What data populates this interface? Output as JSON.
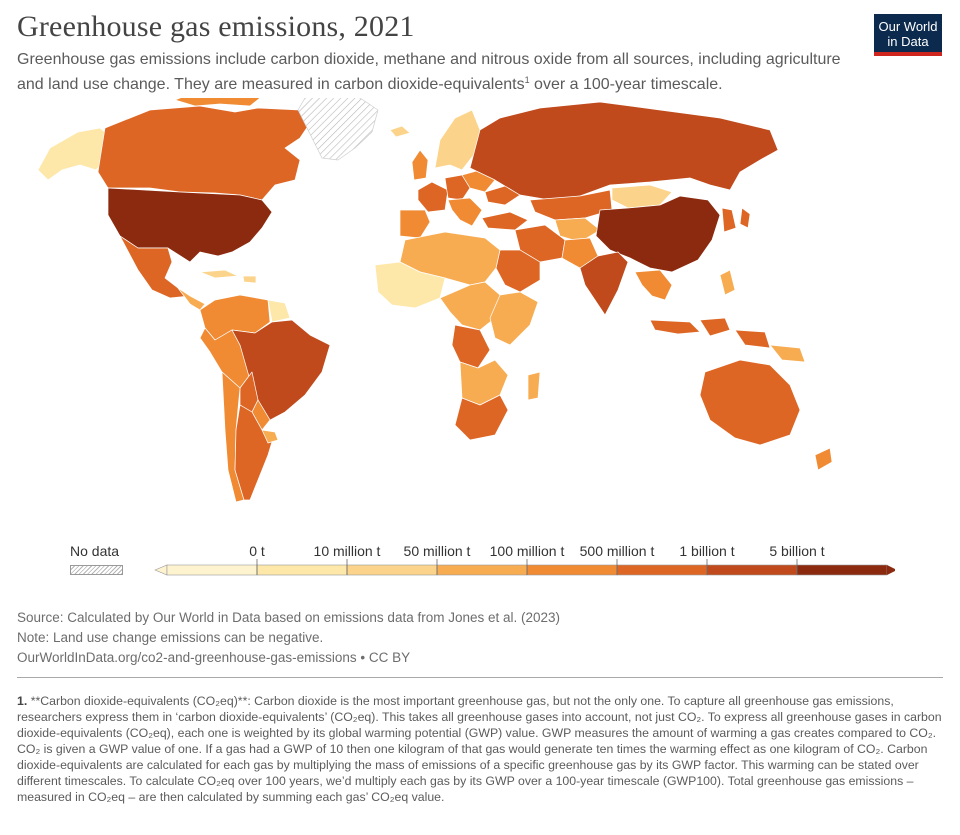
{
  "title": "Greenhouse gas emissions, 2021",
  "subtitle": {
    "before_sup": "Greenhouse gas emissions include carbon dioxide, methane and nitrous oxide from all sources, including agriculture and land use change. They are measured in carbon dioxide-equivalents",
    "sup": "1",
    "after_sup": " over a 100-year timescale."
  },
  "logo": {
    "line1": "Our World",
    "line2": "in Data"
  },
  "colors": {
    "no_data": "#d9d9d9",
    "bins": [
      "#fef3cf",
      "#fde7a9",
      "#fcd38a",
      "#f7ac52",
      "#f08a33",
      "#de6624",
      "#c04a1b",
      "#8b2a0e"
    ],
    "ocean": "#ffffff",
    "border": "#ffffff"
  },
  "legend": {
    "no_data_label": "No data",
    "ticks": [
      "0 t",
      "10 million t",
      "50 million t",
      "100 million t",
      "500 million t",
      "1 billion t",
      "5 billion t"
    ]
  },
  "sources": {
    "source": "Source: Calculated by Our World in Data based on emissions data from Jones et al. (2023)",
    "note": "Note: Land use change emissions can be negative.",
    "url": "OurWorldInData.org/co2-and-greenhouse-gas-emissions • CC BY"
  },
  "footnote": {
    "number": "1.",
    "text": "**Carbon dioxide-equivalents (CO₂eq)**: Carbon dioxide is the most important greenhouse gas, but not the only one. To capture all greenhouse gas emissions, researchers express them in ‘carbon dioxide-equivalents’ (CO₂eq). This takes all greenhouse gases into account, not just CO₂. To express all greenhouse gases in carbon dioxide-equivalents (CO₂eq), each one is weighted by its global warming potential (GWP) value. GWP measures the amount of warming a gas creates compared to CO₂. CO₂ is given a GWP value of one. If a gas had a GWP of 10 then one kilogram of that gas would generate ten times the warming effect as one kilogram of CO₂. Carbon dioxide-equivalents are calculated for each gas by multiplying the mass of emissions of a specific greenhouse gas by its GWP factor. This warming can be stated over different timescales. To calculate CO₂eq over 100 years, we’d multiply each gas by its GWP over a 100-year timescale (GWP100). Total greenhouse gas emissions – measured in CO₂eq – are then calculated by summing each gas’ CO₂eq value."
  }
}
